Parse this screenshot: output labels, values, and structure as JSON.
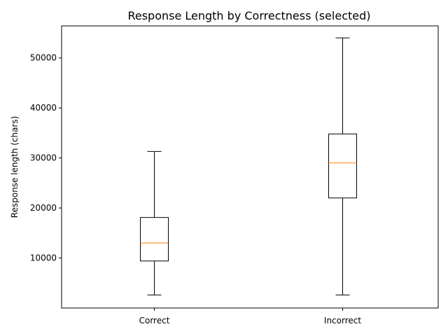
{
  "chart_data": {
    "type": "box",
    "title": "Response Length by Correctness (selected)",
    "xlabel": "",
    "ylabel": "Response length (chars)",
    "categories": [
      "Correct",
      "Incorrect"
    ],
    "boxes": [
      {
        "name": "Correct",
        "whisker_low": 2600,
        "q1": 9400,
        "median": 13000,
        "q3": 18100,
        "whisker_high": 31300
      },
      {
        "name": "Incorrect",
        "whisker_low": 2600,
        "q1": 22000,
        "median": 29000,
        "q3": 34800,
        "whisker_high": 54000
      }
    ],
    "y_ticks": [
      10000,
      20000,
      30000,
      40000,
      50000
    ],
    "ylim": [
      0,
      56400
    ],
    "grid": false,
    "legend": "none",
    "colors": {
      "box": "#000000",
      "median": "#ff7f0e"
    }
  }
}
